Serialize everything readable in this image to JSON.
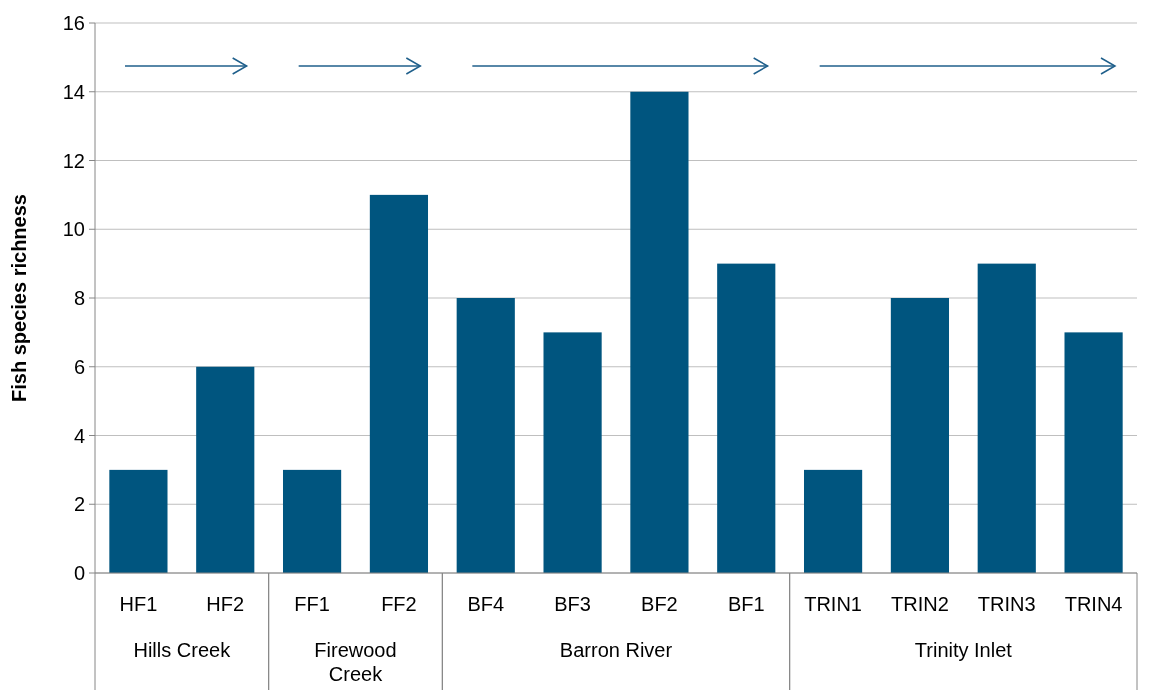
{
  "chart_data": {
    "type": "bar",
    "ylabel": "Fish species richness",
    "categories": [
      "HF1",
      "HF2",
      "FF1",
      "FF2",
      "BF4",
      "BF3",
      "BF2",
      "BF1",
      "TRIN1",
      "TRIN2",
      "TRIN3",
      "TRIN4"
    ],
    "values": [
      3,
      6,
      3,
      11,
      8,
      7,
      14,
      9,
      3,
      8,
      9,
      7
    ],
    "color": "#00557f",
    "ylim": [
      0,
      16
    ],
    "yticks": [
      0,
      2,
      4,
      6,
      8,
      10,
      12,
      14,
      16
    ],
    "grid": "y",
    "annotations": [
      "Hills Creek",
      "Firewood Creek",
      "Barron River",
      "Trinity Inlet"
    ]
  }
}
